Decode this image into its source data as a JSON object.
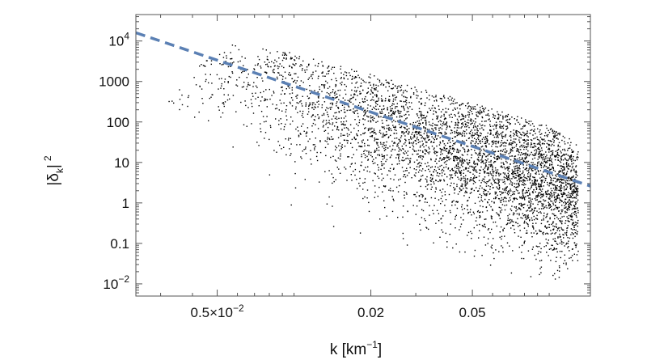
{
  "chart_data": {
    "type": "scatter",
    "x_scale": "log",
    "y_scale": "log",
    "xlim": [
      0.0024,
      0.145
    ],
    "ylim": [
      0.005,
      45000
    ],
    "grid": false,
    "legend": "none",
    "xlabel": {
      "main": "k [km",
      "sup": "−1",
      "close": "]"
    },
    "ylabel": {
      "main": "|δ",
      "sub": "k",
      "close": "|",
      "sup": "2"
    },
    "x_ticks": [
      {
        "value": 0.005,
        "label": "0.5×10",
        "sup": "−2"
      },
      {
        "value": 0.02,
        "label": "0.02"
      },
      {
        "value": 0.05,
        "label": "0.05"
      }
    ],
    "y_ticks": [
      {
        "value": 0.01,
        "label": "10",
        "sup": "−2"
      },
      {
        "value": 0.1,
        "label": "0.1"
      },
      {
        "value": 1,
        "label": "1"
      },
      {
        "value": 10,
        "label": "10"
      },
      {
        "value": 100,
        "label": "100"
      },
      {
        "value": 1000,
        "label": "1000"
      },
      {
        "value": 10000,
        "label": "10",
        "sup": "4"
      }
    ],
    "series": [
      {
        "kind": "scatter",
        "color": "#000000",
        "envelope": [
          {
            "x": 0.003,
            "y_upper": 300,
            "y_lower": 100
          },
          {
            "x": 0.005,
            "y_upper": 9000,
            "y_lower": 30
          },
          {
            "x": 0.01,
            "y_upper": 5000,
            "y_lower": 0.3
          },
          {
            "x": 0.02,
            "y_upper": 1500,
            "y_lower": 0.1
          },
          {
            "x": 0.05,
            "y_upper": 300,
            "y_lower": 0.03
          },
          {
            "x": 0.1,
            "y_upper": 80,
            "y_lower": 0.01
          },
          {
            "x": 0.13,
            "y_upper": 30,
            "y_lower": 0.02
          }
        ],
        "center": [
          {
            "x": 0.003,
            "y": 200
          },
          {
            "x": 0.006,
            "y": 2000
          },
          {
            "x": 0.01,
            "y": 600
          },
          {
            "x": 0.02,
            "y": 120
          },
          {
            "x": 0.04,
            "y": 30
          },
          {
            "x": 0.07,
            "y": 8
          },
          {
            "x": 0.1,
            "y": 3
          },
          {
            "x": 0.13,
            "y": 1.5
          }
        ]
      },
      {
        "kind": "line",
        "style": "dashed",
        "color": "#5b80b4",
        "points": [
          {
            "x": 0.0024,
            "y": 16000
          },
          {
            "x": 0.145,
            "y": 2.6
          }
        ]
      }
    ]
  }
}
